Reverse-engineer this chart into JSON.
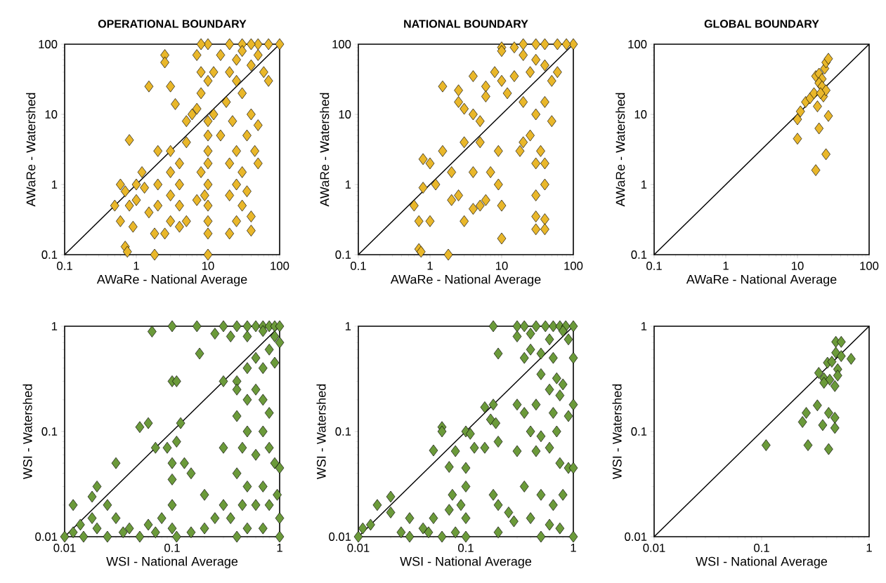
{
  "chart_data": [
    {
      "type": "scatter",
      "title": "OPERATIONAL BOUNDARY",
      "xlabel": "AWaRe - National Average",
      "ylabel": "AWaRe - Watershed",
      "log": "xy",
      "xlim": [
        0.1,
        100
      ],
      "ylim": [
        0.1,
        100
      ],
      "xticks": [
        0.1,
        1,
        10,
        100
      ],
      "yticks": [
        0.1,
        1,
        10,
        100
      ],
      "series": [
        {
          "marker": "diamond",
          "color": "#e9b72a",
          "x": [
            100,
            70,
            50,
            40,
            30,
            20,
            10,
            8,
            50,
            30,
            25,
            40,
            60,
            70,
            15,
            12,
            10,
            8,
            7,
            8,
            20,
            25,
            30,
            40,
            50,
            35,
            25,
            20,
            30,
            25,
            20,
            30,
            40,
            40,
            25,
            20,
            50,
            45,
            35,
            22,
            18,
            15,
            12,
            10,
            10,
            10,
            10,
            10,
            9,
            10,
            10,
            10,
            10,
            8,
            7,
            6,
            7,
            5,
            5,
            4,
            4,
            4,
            3,
            3,
            3,
            3,
            2.5,
            4,
            5,
            3.5,
            2,
            2,
            2,
            1.8,
            1.8,
            2.5,
            2.5,
            3,
            1.5,
            0.5,
            0.6,
            0.7,
            0.8,
            0.6,
            1,
            1,
            1.2,
            0.8,
            0.7,
            0.75,
            1.3,
            0.9,
            1.5
          ],
          "values": [
            100,
            100,
            100,
            100,
            100,
            100,
            100,
            100,
            70,
            80,
            60,
            50,
            40,
            30,
            70,
            40,
            30,
            40,
            70,
            20,
            40,
            30,
            20,
            10,
            7,
            5,
            3,
            2,
            1.5,
            1,
            0.7,
            0.5,
            0.35,
            0.22,
            0.3,
            0.2,
            2,
            3,
            0.8,
            8,
            15,
            5,
            10,
            8,
            5,
            3,
            2,
            1,
            0.7,
            0.5,
            0.3,
            0.2,
            0.1,
            1.5,
            0.6,
            10,
            12,
            8,
            4,
            2,
            1,
            0.5,
            3,
            1.5,
            0.7,
            0.3,
            0.2,
            0.25,
            0.3,
            14,
            3,
            1,
            0.5,
            0.2,
            0.1,
            70,
            55,
            25,
            25,
            0.5,
            0.3,
            0.8,
            0.5,
            1,
            0.6,
            1,
            1.5,
            4.3,
            0.13,
            0.11,
            0.9,
            0.25,
            0.4
          ]
        },
        {
          "type": "line",
          "marker": "none",
          "line_style": "solid",
          "color": "#000000",
          "x": [
            0.1,
            100
          ],
          "values": [
            0.1,
            100
          ]
        }
      ]
    },
    {
      "type": "scatter",
      "title": "NATIONAL BOUNDARY",
      "xlabel": "AWaRe - National Average",
      "ylabel": "AWaRe - Watershed",
      "log": "xy",
      "xlim": [
        0.1,
        100
      ],
      "ylim": [
        0.1,
        100
      ],
      "xticks": [
        0.1,
        1,
        10,
        100
      ],
      "yticks": [
        0.1,
        1,
        10,
        100
      ],
      "series": [
        {
          "marker": "diamond",
          "color": "#e9b72a",
          "x": [
            100,
            80,
            60,
            40,
            30,
            20,
            15,
            20,
            30,
            40,
            50,
            60,
            25,
            15,
            10,
            12,
            20,
            30,
            40,
            50,
            25,
            18,
            20,
            30,
            40,
            35,
            40,
            30,
            30,
            40,
            30,
            40,
            10,
            10,
            8,
            6,
            6,
            4,
            4,
            5,
            9,
            9,
            10,
            10,
            7,
            6,
            5,
            4,
            3,
            3,
            2.5,
            2.5,
            2,
            2,
            1.5,
            1.5,
            1.2,
            1,
            0.8,
            0.6,
            0.7,
            0.8,
            1,
            0.7,
            0.75,
            1.8,
            3,
            4,
            5,
            2.5
          ],
          "values": [
            100,
            100,
            100,
            100,
            100,
            100,
            90,
            70,
            60,
            50,
            30,
            40,
            40,
            35,
            30,
            20,
            15,
            10,
            15,
            8,
            5,
            3,
            4,
            2,
            2,
            3,
            1,
            0.7,
            0.35,
            0.32,
            0.23,
            0.23,
            90,
            80,
            40,
            25,
            18,
            35,
            10,
            8,
            3,
            1,
            0.5,
            0.17,
            1.5,
            0.6,
            4,
            1.5,
            4,
            12,
            22,
            15,
            1.5,
            0.6,
            25,
            3,
            1,
            2,
            2.3,
            0.5,
            0.3,
            0.9,
            0.3,
            0.12,
            0.11,
            0.1,
            0.3,
            0.45,
            0.5,
            0.7
          ]
        },
        {
          "type": "line",
          "marker": "none",
          "line_style": "solid",
          "color": "#000000",
          "x": [
            0.1,
            100
          ],
          "values": [
            0.1,
            100
          ]
        }
      ]
    },
    {
      "type": "scatter",
      "title": "GLOBAL BOUNDARY",
      "xlabel": "AWaRe - National Average",
      "ylabel": "AWaRe - Watershed",
      "log": "xy",
      "xlim": [
        0.1,
        100
      ],
      "ylim": [
        0.1,
        100
      ],
      "xticks": [
        0.1,
        1,
        10,
        100
      ],
      "yticks": [
        0.1,
        1,
        10,
        100
      ],
      "series": [
        {
          "marker": "diamond",
          "color": "#e9b72a",
          "x": [
            10,
            10,
            11,
            13,
            15,
            17,
            18,
            20,
            22,
            20,
            22,
            24,
            25,
            27,
            23,
            25,
            20,
            27,
            25,
            18,
            19,
            21
          ],
          "values": [
            8.5,
            4.5,
            11,
            15,
            17,
            20,
            35,
            38,
            32,
            28,
            25,
            45,
            55,
            62,
            18,
            22,
            6.3,
            9.5,
            2.7,
            1.6,
            13,
            20
          ]
        },
        {
          "type": "line",
          "marker": "none",
          "line_style": "solid",
          "color": "#000000",
          "x": [
            0.1,
            100
          ],
          "values": [
            0.1,
            100
          ]
        }
      ]
    },
    {
      "type": "scatter",
      "xlabel": "WSI - National Average",
      "ylabel": "WSI - Watershed",
      "log": "xy",
      "xlim": [
        0.01,
        1
      ],
      "ylim": [
        0.01,
        1
      ],
      "xticks": [
        0.01,
        0.1,
        1
      ],
      "yticks": [
        0.01,
        0.1,
        1
      ],
      "series": [
        {
          "marker": "diamond",
          "color": "#6b9a3a",
          "x": [
            0.065,
            0.1,
            0.17,
            0.3,
            0.4,
            0.5,
            0.6,
            0.7,
            0.8,
            0.9,
            1,
            0.35,
            0.5,
            0.7,
            0.9,
            1,
            0.8,
            0.6,
            0.7,
            0.9,
            0.5,
            0.4,
            0.3,
            0.18,
            0.25,
            0.1,
            0.11,
            0.07,
            0.09,
            0.12,
            0.11,
            0.1,
            0.13,
            0.15,
            0.1,
            0.05,
            0.06,
            0.03,
            0.02,
            0.025,
            0.018,
            0.4,
            0.5,
            0.6,
            0.7,
            0.8,
            0.4,
            0.5,
            0.7,
            0.3,
            0.45,
            0.6,
            0.8,
            0.9,
            1,
            0.4,
            0.5,
            0.7,
            0.3,
            0.45,
            0.6,
            0.8,
            0.95,
            1,
            0.35,
            0.5,
            0.7,
            1,
            0.4,
            0.2,
            0.25,
            0.2,
            0.15,
            0.01,
            0.012,
            0.014,
            0.015,
            0.02,
            0.025,
            0.03,
            0.035,
            0.04,
            0.05,
            0.06,
            0.07,
            0.08,
            0.1,
            0.1,
            0.11,
            0.012,
            0.018
          ],
          "values": [
            0.89,
            1,
            1,
            1,
            1,
            1,
            1,
            1,
            1,
            1,
            1,
            0.8,
            0.8,
            0.9,
            0.8,
            0.7,
            0.6,
            0.5,
            0.4,
            0.45,
            0.4,
            0.3,
            0.3,
            0.55,
            0.85,
            0.3,
            0.3,
            0.07,
            0.07,
            0.12,
            0.08,
            0.05,
            0.05,
            0.04,
            0.035,
            0.11,
            0.12,
            0.05,
            0.03,
            0.02,
            0.024,
            0.25,
            0.2,
            0.25,
            0.2,
            0.15,
            0.14,
            0.1,
            0.1,
            0.07,
            0.07,
            0.06,
            0.07,
            0.05,
            0.045,
            0.04,
            0.03,
            0.03,
            0.02,
            0.02,
            0.02,
            0.02,
            0.025,
            0.015,
            0.015,
            0.012,
            0.012,
            0.01,
            0.01,
            0.025,
            0.015,
            0.012,
            0.011,
            0.01,
            0.011,
            0.013,
            0.01,
            0.012,
            0.01,
            0.015,
            0.011,
            0.012,
            0.01,
            0.013,
            0.011,
            0.015,
            0.012,
            0.02,
            0.01,
            0.02,
            0.015
          ]
        },
        {
          "type": "line",
          "marker": "none",
          "line_style": "solid",
          "color": "#000000",
          "x": [
            0.01,
            1
          ],
          "values": [
            0.01,
            1
          ]
        }
      ]
    },
    {
      "type": "scatter",
      "xlabel": "WSI - National Average",
      "ylabel": "WSI - Watershed",
      "log": "xy",
      "xlim": [
        0.01,
        1
      ],
      "ylim": [
        0.01,
        1
      ],
      "xticks": [
        0.01,
        0.1,
        1
      ],
      "yticks": [
        0.01,
        0.1,
        1
      ],
      "series": [
        {
          "marker": "diamond",
          "color": "#6b9a3a",
          "x": [
            0.18,
            0.3,
            0.35,
            0.45,
            0.55,
            0.65,
            0.75,
            0.85,
            1,
            0.3,
            0.4,
            0.6,
            0.8,
            0.9,
            0.4,
            0.5,
            0.65,
            0.35,
            0.2,
            0.5,
            1,
            0.7,
            0.8,
            0.6,
            0.75,
            0.45,
            0.3,
            0.35,
            0.65,
            0.4,
            0.7,
            0.5,
            1,
            0.9,
            0.3,
            0.45,
            0.6,
            0.75,
            0.9,
            1,
            0.35,
            0.5,
            0.65,
            0.8,
            0.4,
            0.6,
            0.75,
            1,
            0.5,
            0.15,
            0.18,
            0.17,
            0.19,
            0.2,
            0.1,
            0.11,
            0.12,
            0.15,
            0.08,
            0.06,
            0.06,
            0.05,
            0.07,
            0.1,
            0.1,
            0.09,
            0.1,
            0.075,
            0.07,
            0.05,
            0.04,
            0.03,
            0.02,
            0.015,
            0.02,
            0.013,
            0.011,
            0.01,
            0.025,
            0.03,
            0.045,
            0.06,
            0.08,
            0.1,
            0.18,
            0.2,
            0.25,
            0.28,
            0.2
          ],
          "values": [
            1,
            1,
            1,
            1,
            1,
            1,
            1,
            1,
            1,
            0.8,
            0.85,
            0.75,
            0.9,
            0.75,
            0.6,
            0.55,
            0.5,
            0.5,
            0.55,
            0.35,
            0.5,
            0.32,
            0.28,
            0.25,
            0.22,
            0.18,
            0.18,
            0.15,
            0.15,
            0.1,
            0.1,
            0.09,
            0.18,
            0.14,
            0.065,
            0.065,
            0.07,
            0.05,
            0.045,
            0.045,
            0.03,
            0.025,
            0.02,
            0.025,
            0.015,
            0.013,
            0.012,
            0.01,
            0.01,
            0.17,
            0.18,
            0.13,
            0.12,
            0.08,
            0.1,
            0.095,
            0.07,
            0.07,
            0.065,
            0.11,
            0.1,
            0.066,
            0.046,
            0.045,
            0.03,
            0.02,
            0.015,
            0.025,
            0.018,
            0.015,
            0.012,
            0.015,
            0.024,
            0.02,
            0.017,
            0.013,
            0.012,
            0.01,
            0.011,
            0.01,
            0.011,
            0.01,
            0.011,
            0.01,
            0.025,
            0.02,
            0.017,
            0.014,
            0.011
          ]
        },
        {
          "type": "line",
          "marker": "none",
          "line_style": "solid",
          "color": "#000000",
          "x": [
            0.01,
            1
          ],
          "values": [
            0.01,
            1
          ]
        }
      ]
    },
    {
      "type": "scatter",
      "xlabel": "WSI - National Average",
      "ylabel": "WSI - Watershed",
      "log": "xy",
      "xlim": [
        0.01,
        1
      ],
      "ylim": [
        0.01,
        1
      ],
      "xticks": [
        0.01,
        0.1,
        1
      ],
      "yticks": [
        0.01,
        0.1,
        1
      ],
      "series": [
        {
          "marker": "diamond",
          "color": "#6b9a3a",
          "x": [
            0.11,
            0.27,
            0.42,
            0.24,
            0.26,
            0.33,
            0.42,
            0.48,
            0.37,
            0.48,
            0.49,
            0.55,
            0.68,
            0.34,
            0.49,
            0.55,
            0.41,
            0.45,
            0.51,
            0.51,
            0.38,
            0.43,
            0.48,
            0.38
          ],
          "values": [
            0.074,
            0.074,
            0.068,
            0.123,
            0.15,
            0.177,
            0.15,
            0.135,
            0.115,
            0.108,
            0.71,
            0.71,
            0.49,
            0.36,
            0.56,
            0.52,
            0.45,
            0.46,
            0.39,
            0.34,
            0.32,
            0.31,
            0.27,
            0.29
          ]
        },
        {
          "type": "line",
          "marker": "none",
          "line_style": "solid",
          "color": "#000000",
          "x": [
            0.01,
            1
          ],
          "values": [
            0.01,
            1
          ]
        }
      ]
    }
  ]
}
